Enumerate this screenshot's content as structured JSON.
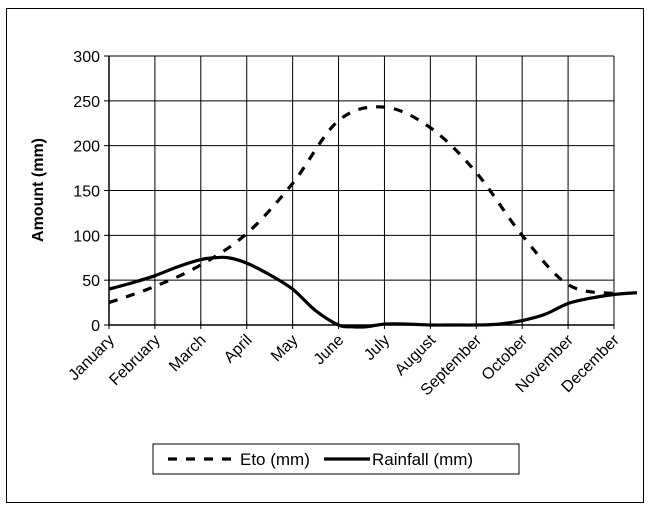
{
  "chart_data": {
    "type": "line",
    "categories": [
      "January",
      "February",
      "March",
      "April",
      "May",
      "June",
      "July",
      "August",
      "September",
      "October",
      "November",
      "December"
    ],
    "ylabel": "Amount (mm)",
    "xlabel": "",
    "ylim": [
      0,
      300
    ],
    "yticks": [
      0,
      50,
      100,
      150,
      200,
      250,
      300
    ],
    "grid": true,
    "legend_position": "bottom",
    "series": [
      {
        "name": "Eto (mm)",
        "style": "dashed",
        "color": "#000000",
        "x": [
          0,
          1,
          2,
          3,
          4,
          5,
          6,
          7,
          8,
          9,
          10,
          11
        ],
        "values": [
          25,
          43,
          67,
          102,
          158,
          228,
          243,
          220,
          170,
          100,
          45,
          35
        ]
      },
      {
        "name": "Rainfall (mm)",
        "style": "solid",
        "color": "#000000",
        "x": [
          0,
          0.5,
          1,
          1.5,
          2,
          2.3,
          2.6,
          3,
          3.5,
          4,
          4.5,
          5,
          5.3,
          5.6,
          6,
          6.5,
          7,
          7.5,
          8,
          8.5,
          9,
          9.5,
          10,
          10.5,
          11,
          11.5
        ],
        "values": [
          40,
          47,
          55,
          65,
          73,
          75,
          75,
          69,
          56,
          40,
          16,
          0,
          -2,
          -2,
          1,
          1,
          0,
          0,
          0,
          1,
          5,
          12,
          24,
          30,
          34,
          36
        ]
      }
    ]
  }
}
